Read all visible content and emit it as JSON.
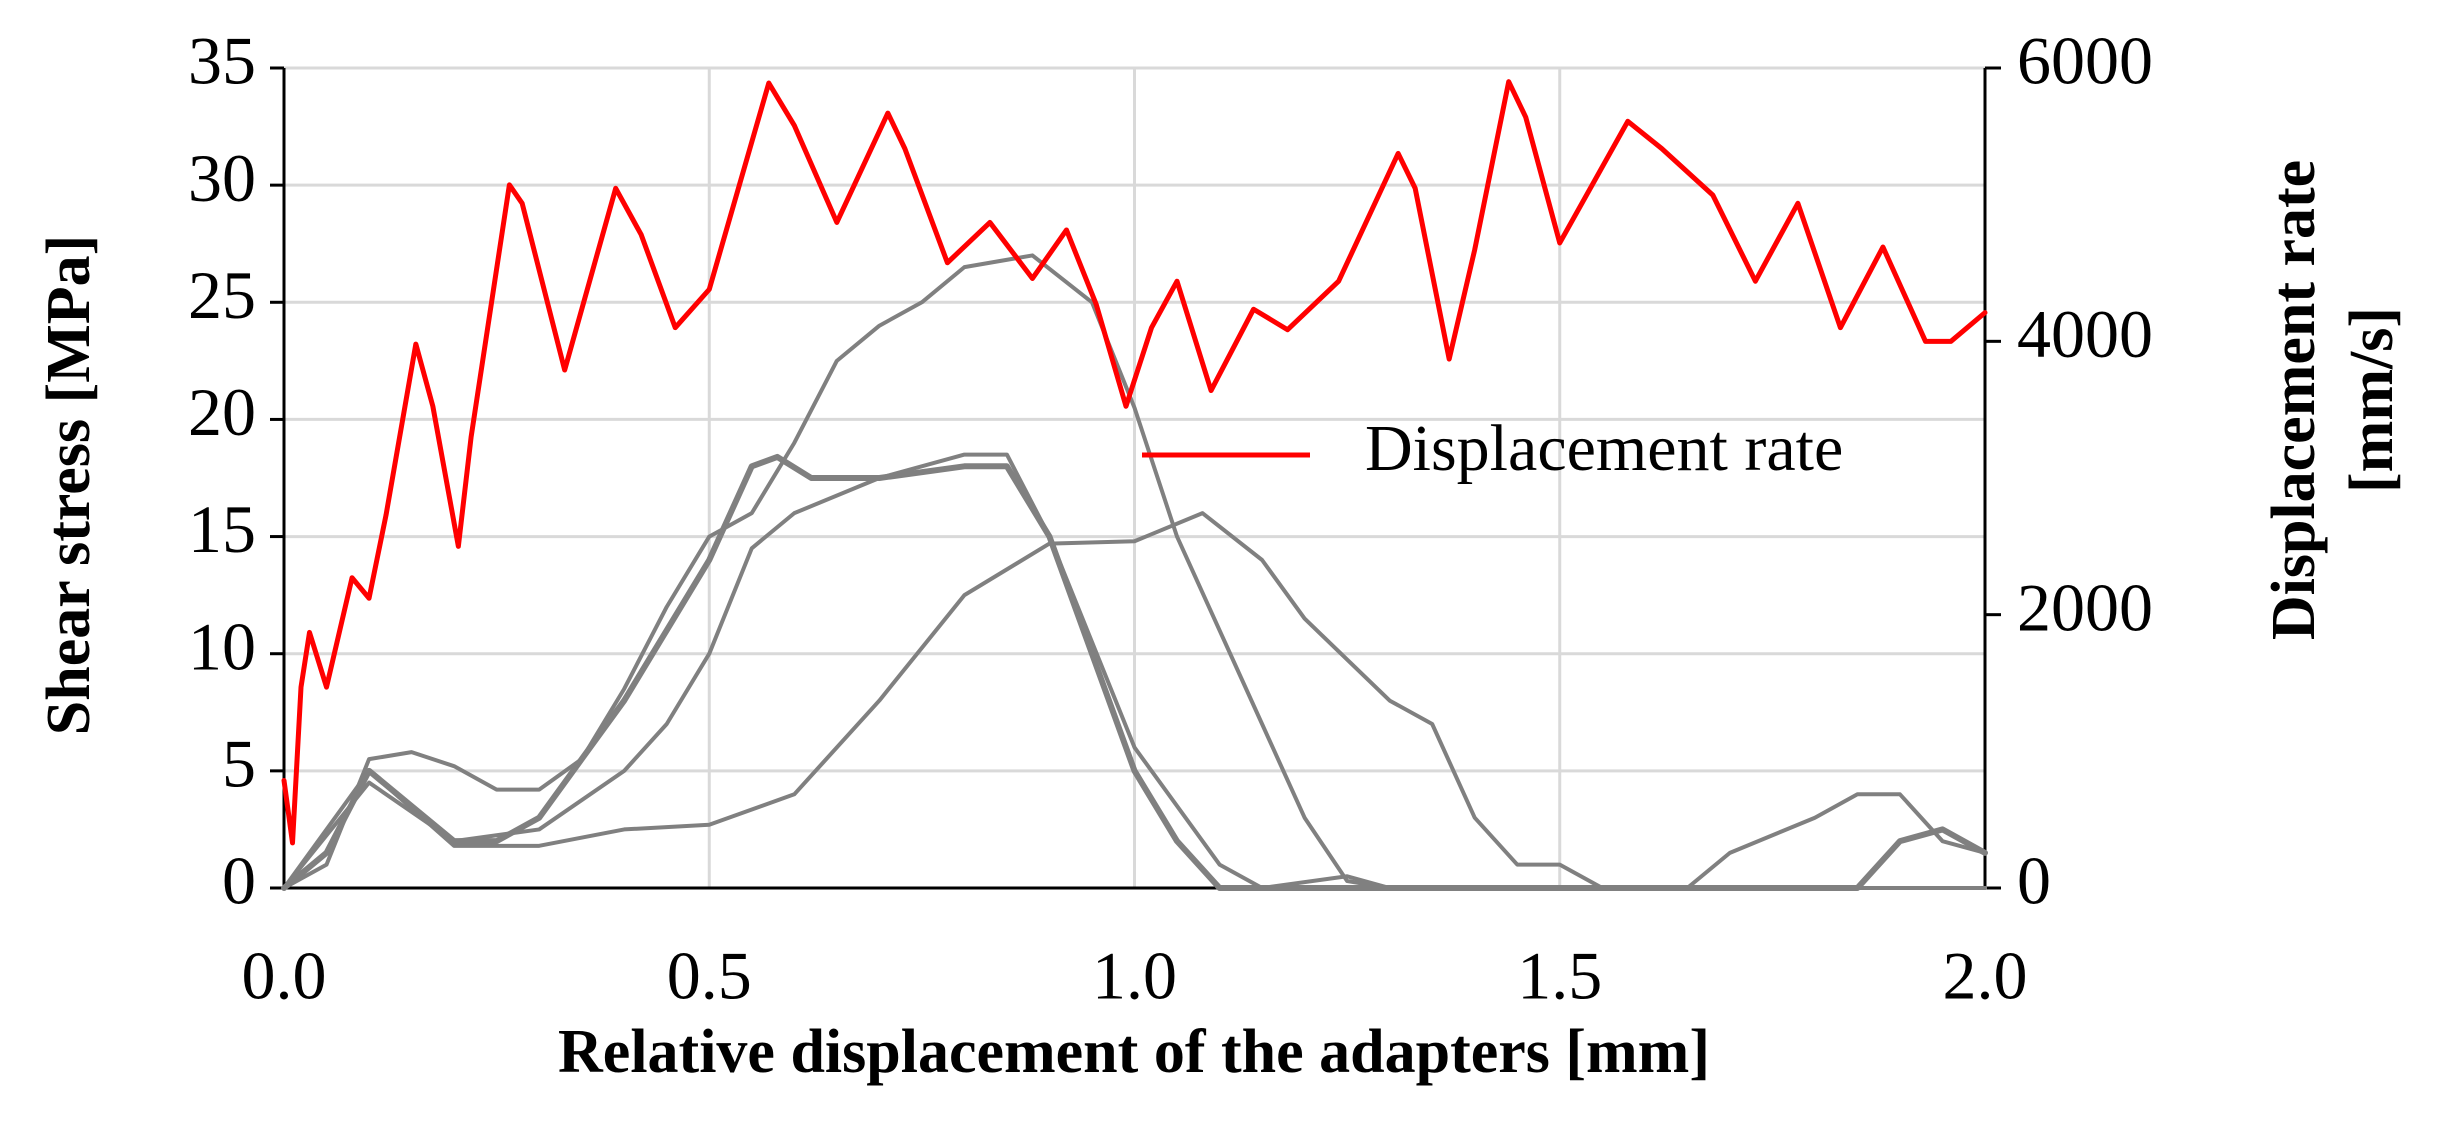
{
  "chart_data": {
    "type": "line",
    "xlabel": "Relative displacement of the adapters [mm]",
    "ylabel": "Shear stress [MPa]",
    "y2label": [
      "Displacement rate",
      "[mm/s]"
    ],
    "xlim": [
      0,
      2
    ],
    "xticks": [
      {
        "value": 0,
        "label": "0.0"
      },
      0.5,
      {
        "value": 1,
        "label": "1.0"
      },
      1.5,
      {
        "value": 2,
        "label": "2.0"
      }
    ],
    "ylim": [
      0,
      35
    ],
    "yticks": [
      0,
      5,
      10,
      15,
      20,
      25,
      30,
      35
    ],
    "y2lim": [
      0,
      6000
    ],
    "y2ticks": [
      0,
      2000,
      4000,
      6000
    ],
    "grid": true,
    "series": [
      {
        "color": "#808080",
        "width": 4,
        "x": [
          0,
          0.05,
          0.1,
          0.15,
          0.2,
          0.25,
          0.3,
          0.35,
          0.4,
          0.45,
          0.5,
          0.55,
          0.6,
          0.65,
          0.7,
          0.75,
          0.8,
          0.88,
          0.95,
          1.0,
          1.05,
          1.1,
          1.15,
          1.2,
          1.25,
          1.3,
          2.0
        ],
        "values": [
          0,
          1,
          5.5,
          5.8,
          5.2,
          4.2,
          4.2,
          5.5,
          8.5,
          12,
          15,
          16,
          19,
          22.5,
          24,
          25,
          26.5,
          27,
          25,
          20.5,
          15,
          11,
          7,
          3,
          0.3,
          0,
          0
        ]
      },
      {
        "color": "#808080",
        "width": 6,
        "x": [
          0,
          0.05,
          0.1,
          0.15,
          0.2,
          0.25,
          0.3,
          0.35,
          0.4,
          0.45,
          0.5,
          0.55,
          0.58,
          0.62,
          0.7,
          0.8,
          0.85,
          0.9,
          0.95,
          1.0,
          1.05,
          1.1,
          1.85,
          1.9,
          1.95,
          2.0
        ],
        "values": [
          0,
          1.5,
          5,
          3.5,
          2,
          2,
          3,
          5.5,
          8,
          11,
          14,
          18,
          18.4,
          17.5,
          17.5,
          18,
          18,
          15,
          10,
          5,
          2,
          0,
          0,
          2,
          2.5,
          1.5
        ]
      },
      {
        "color": "#808080",
        "width": 4,
        "x": [
          0,
          0.1,
          0.2,
          0.3,
          0.4,
          0.45,
          0.5,
          0.55,
          0.6,
          0.7,
          0.8,
          0.85,
          0.9,
          1.0,
          1.1,
          1.15,
          1.25,
          1.3,
          2.0
        ],
        "values": [
          0,
          4.5,
          2,
          2.5,
          5,
          7,
          10,
          14.5,
          16,
          17.5,
          18.5,
          18.5,
          15,
          6,
          1,
          0,
          0.5,
          0,
          0
        ]
      },
      {
        "color": "#808080",
        "width": 4,
        "x": [
          0,
          0.1,
          0.2,
          0.3,
          0.4,
          0.5,
          0.6,
          0.7,
          0.8,
          0.9,
          1.0,
          1.08,
          1.15,
          1.2,
          1.3,
          1.35,
          1.4,
          1.45,
          1.5,
          1.55,
          1.65,
          1.7,
          1.8,
          1.85,
          1.9,
          1.95,
          2.0
        ],
        "values": [
          0,
          5,
          1.8,
          1.8,
          2.5,
          2.7,
          4,
          8,
          12.5,
          14.7,
          14.8,
          16,
          14,
          11.5,
          8,
          7,
          3,
          1,
          1,
          0,
          0,
          1.5,
          3,
          4,
          4,
          2,
          1.5
        ]
      },
      {
        "name": "Displacement rate",
        "color": "#ff0000",
        "width": 5,
        "axis": "y2",
        "x": [
          0,
          0.01,
          0.02,
          0.03,
          0.05,
          0.08,
          0.1,
          0.12,
          0.155,
          0.175,
          0.205,
          0.22,
          0.265,
          0.28,
          0.33,
          0.39,
          0.42,
          0.46,
          0.5,
          0.57,
          0.6,
          0.65,
          0.71,
          0.73,
          0.78,
          0.83,
          0.88,
          0.92,
          0.955,
          0.99,
          1.02,
          1.05,
          1.09,
          1.14,
          1.18,
          1.24,
          1.31,
          1.33,
          1.37,
          1.4,
          1.44,
          1.46,
          1.5,
          1.58,
          1.62,
          1.68,
          1.73,
          1.78,
          1.83,
          1.88,
          1.93,
          1.96,
          2.0
        ],
        "values": [
          787,
          330,
          1470,
          1870,
          1470,
          2270,
          2120,
          2730,
          3980,
          3525,
          2500,
          3300,
          5145,
          5010,
          3790,
          5120,
          4780,
          4100,
          4380,
          5890,
          5580,
          4870,
          5670,
          5410,
          4575,
          4870,
          4460,
          4815,
          4270,
          3525,
          4100,
          4440,
          3640,
          4235,
          4085,
          4440,
          5375,
          5120,
          3870,
          4670,
          5900,
          5640,
          4720,
          5610,
          5410,
          5070,
          4440,
          5010,
          4100,
          4690,
          4000,
          4000,
          4210
        ]
      }
    ]
  }
}
